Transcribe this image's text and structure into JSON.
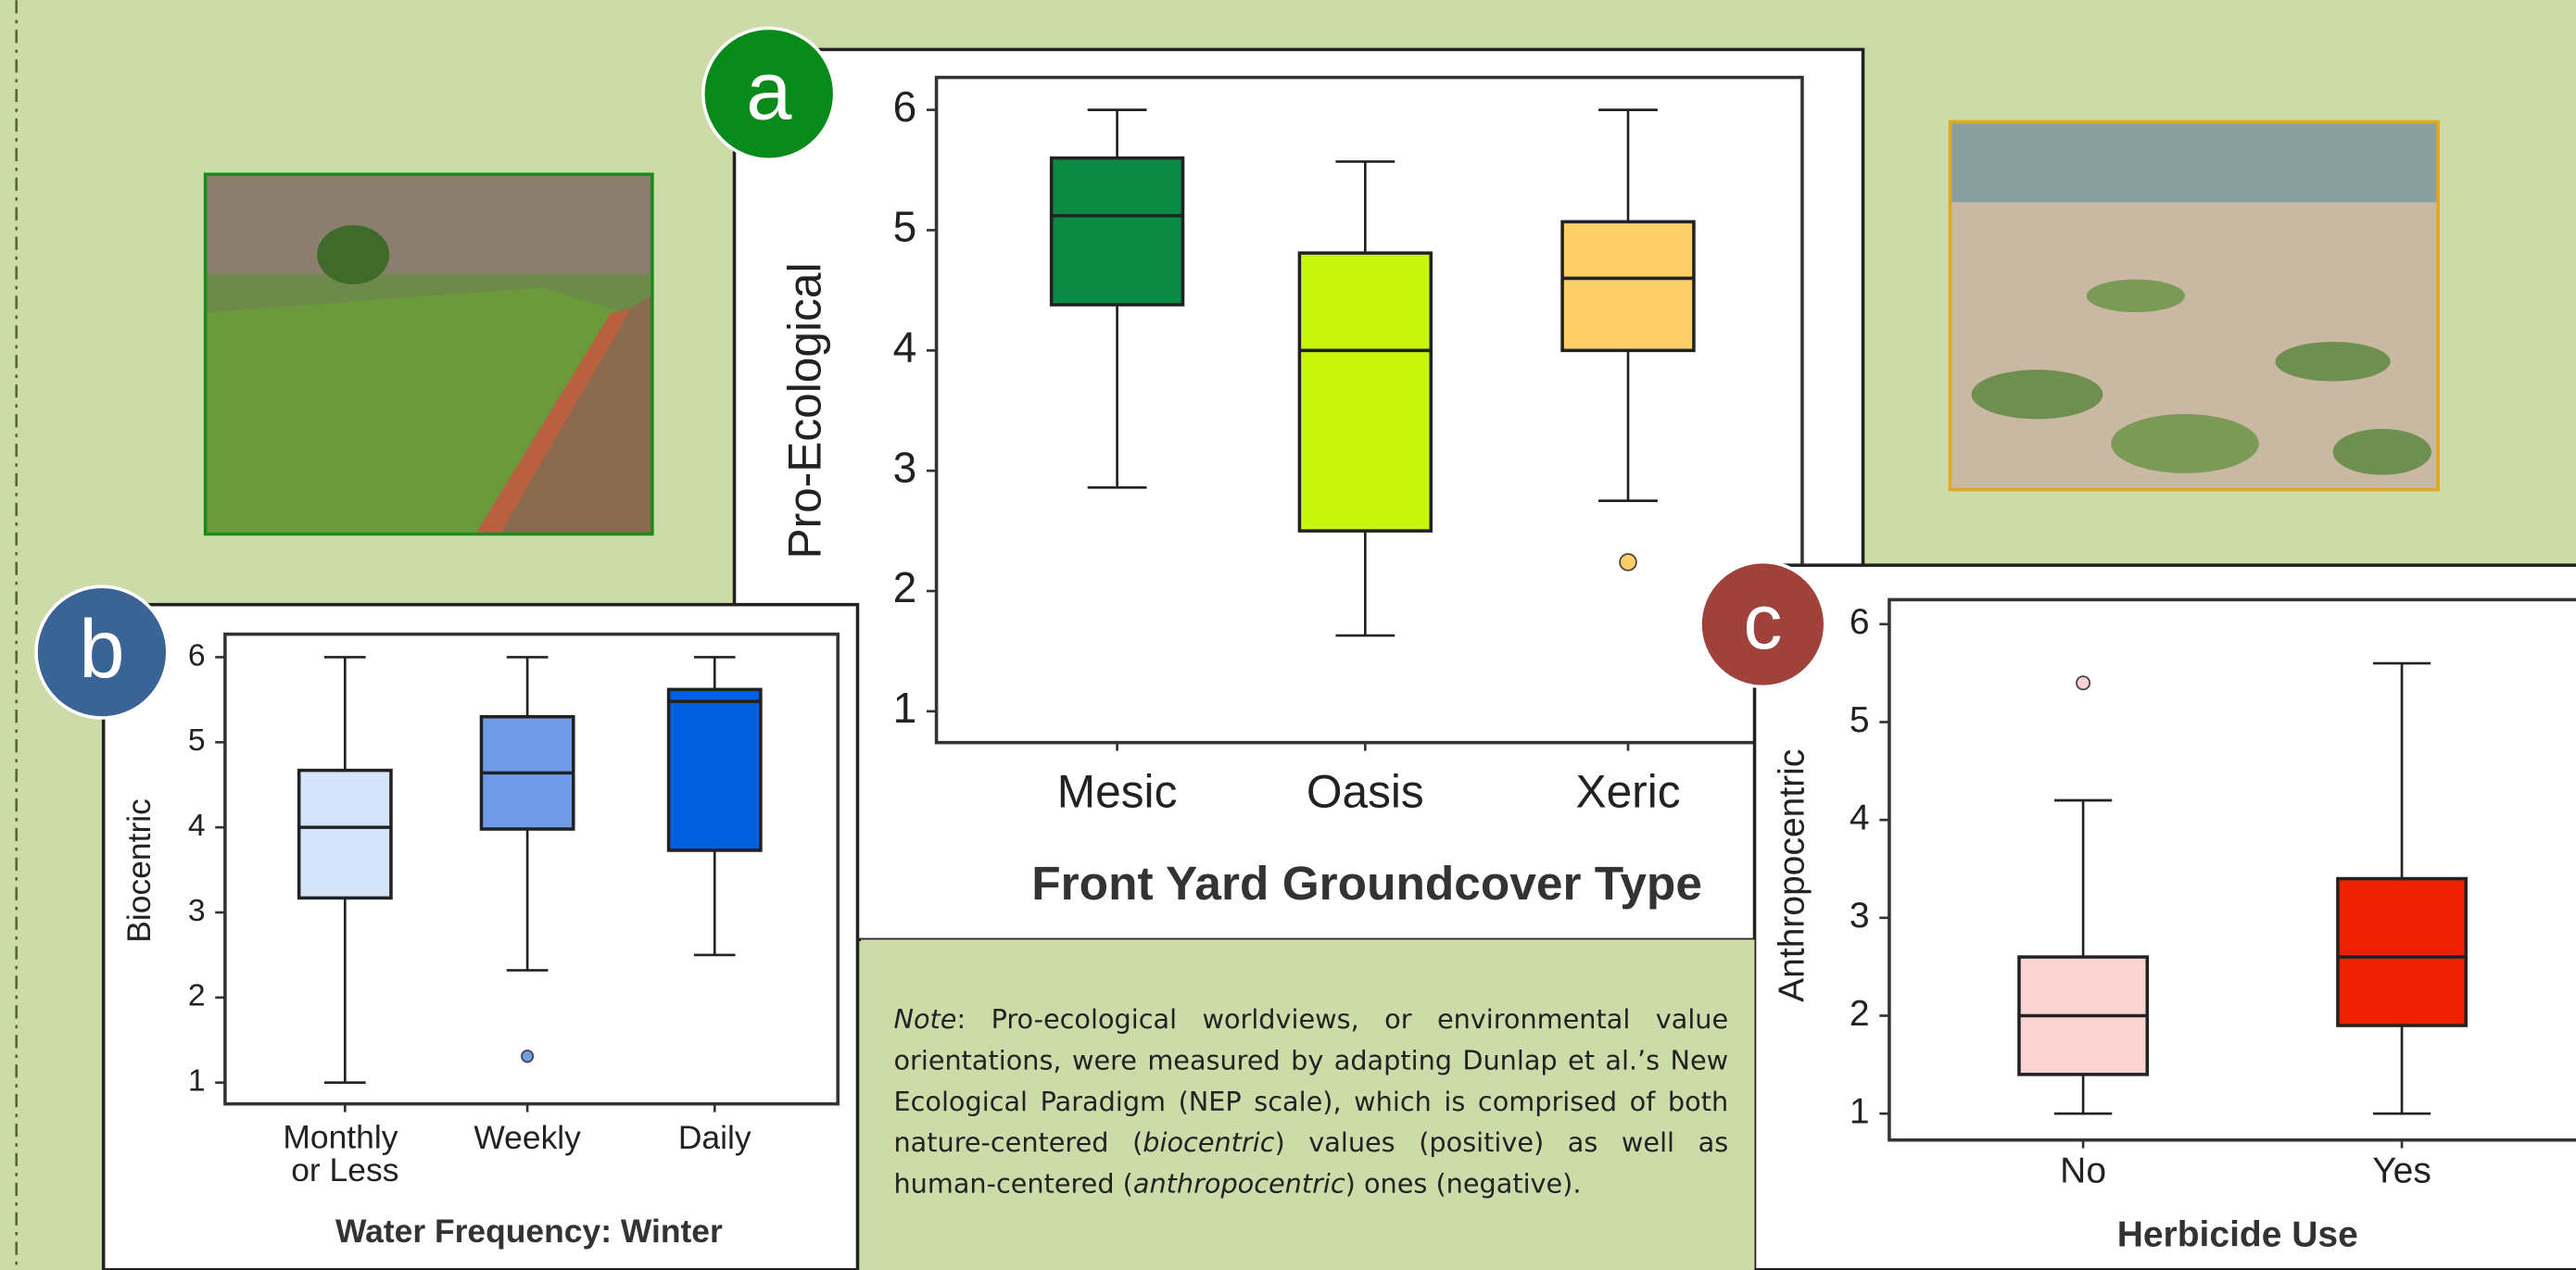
{
  "chart_data": [
    {
      "type": "box",
      "panel": "a",
      "xlabel": "Front Yard Groundcover Type",
      "ylabel": "Pro-Ecological",
      "categories": [
        "Mesic",
        "Oasis",
        "Xeric"
      ],
      "colors": [
        "#0a8a43",
        "#c8f50a",
        "#fecf68"
      ],
      "boxes": [
        {
          "min": 2.86,
          "q1": 4.38,
          "median": 5.12,
          "q3": 5.6,
          "max": 6,
          "outliers": []
        },
        {
          "min": 1.63,
          "q1": 2.5,
          "median": 4.0,
          "q3": 4.81,
          "max": 5.57,
          "outliers": []
        },
        {
          "min": 2.75,
          "q1": 4.0,
          "median": 4.6,
          "q3": 5.07,
          "max": 6,
          "outliers": [
            2.24
          ]
        }
      ],
      "ylim": [
        0.74,
        6.27
      ],
      "yticks": [
        1,
        2,
        3,
        4,
        5,
        6
      ]
    },
    {
      "type": "box",
      "panel": "b",
      "xlabel": "Water Frequency: Winter",
      "ylabel": "Biocentric",
      "categories": [
        "Monthly or Less",
        "Weekly",
        "Daily"
      ],
      "colors": [
        "#d6e4fa",
        "#6f9be8",
        "#0060e0"
      ],
      "boxes": [
        {
          "min": 1.0,
          "q1": 3.17,
          "median": 4.0,
          "q3": 4.67,
          "max": 6,
          "outliers": []
        },
        {
          "min": 2.32,
          "q1": 3.98,
          "median": 4.64,
          "q3": 5.3,
          "max": 6,
          "outliers": [
            1.31
          ]
        },
        {
          "min": 2.5,
          "q1": 3.73,
          "median": 5.48,
          "q3": 5.62,
          "max": 6,
          "outliers": []
        }
      ],
      "ylim": [
        0.75,
        6.27
      ],
      "yticks": [
        1,
        2,
        3,
        4,
        5,
        6
      ]
    },
    {
      "type": "box",
      "panel": "c",
      "xlabel": "Herbicide Use",
      "ylabel": "Anthropocentric",
      "categories": [
        "No",
        "Yes"
      ],
      "colors": [
        "#fcd3d3",
        "#ee2200"
      ],
      "boxes": [
        {
          "min": 1.0,
          "q1": 1.4,
          "median": 2.0,
          "q3": 2.6,
          "max": 4.2,
          "outliers": [
            5.4
          ]
        },
        {
          "min": 1.0,
          "q1": 1.9,
          "median": 2.6,
          "q3": 3.4,
          "max": 5.6,
          "outliers": []
        }
      ],
      "ylim": [
        0.73,
        6.25
      ],
      "yticks": [
        1,
        2,
        3,
        4,
        5,
        6
      ]
    }
  ],
  "note": [
    {
      "text": "Note",
      "italic": true
    },
    {
      "text": ": Pro-ecological worldviews, or environmental value orientations, were measured by adapting Dunlap et al.’s New Ecological Paradigm (NEP scale), which is comprised of both nature-centered (",
      "italic": false
    },
    {
      "text": "biocentric",
      "italic": true
    },
    {
      "text": ") values (positive) as well as human-centered (",
      "italic": false
    },
    {
      "text": "anthropocentric",
      "italic": true
    },
    {
      "text": ") ones (negative).",
      "italic": false
    }
  ]
}
